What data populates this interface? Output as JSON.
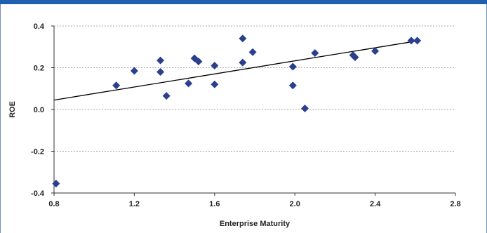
{
  "chart_data": {
    "type": "scatter",
    "title": "",
    "xlabel": "Enterprise Maturity",
    "ylabel": "ROE",
    "xlim": [
      0.8,
      2.8
    ],
    "ylim": [
      -0.4,
      0.4
    ],
    "x_ticks": [
      "0.8",
      "1.2",
      "1.6",
      "2.0",
      "2.4",
      "2.8"
    ],
    "y_ticks": [
      "0.4",
      "0.2",
      "0.0",
      "-0.2",
      "-0.4"
    ],
    "grid": "horizontal-dashed",
    "marker_color": "#2b3f8f",
    "trendline": {
      "x": [
        0.8,
        2.62
      ],
      "y": [
        0.045,
        0.33
      ],
      "color": "#000000"
    },
    "points": [
      {
        "x": 0.81,
        "y": -0.355
      },
      {
        "x": 1.11,
        "y": 0.115
      },
      {
        "x": 1.2,
        "y": 0.185
      },
      {
        "x": 1.33,
        "y": 0.235
      },
      {
        "x": 1.33,
        "y": 0.18
      },
      {
        "x": 1.36,
        "y": 0.065
      },
      {
        "x": 1.47,
        "y": 0.125
      },
      {
        "x": 1.5,
        "y": 0.245
      },
      {
        "x": 1.52,
        "y": 0.23
      },
      {
        "x": 1.6,
        "y": 0.21
      },
      {
        "x": 1.6,
        "y": 0.12
      },
      {
        "x": 1.74,
        "y": 0.34
      },
      {
        "x": 1.74,
        "y": 0.225
      },
      {
        "x": 1.79,
        "y": 0.275
      },
      {
        "x": 1.99,
        "y": 0.205
      },
      {
        "x": 1.99,
        "y": 0.115
      },
      {
        "x": 2.05,
        "y": 0.005
      },
      {
        "x": 2.1,
        "y": 0.27
      },
      {
        "x": 2.29,
        "y": 0.26
      },
      {
        "x": 2.3,
        "y": 0.25
      },
      {
        "x": 2.4,
        "y": 0.28
      },
      {
        "x": 2.58,
        "y": 0.33
      },
      {
        "x": 2.61,
        "y": 0.33
      }
    ]
  }
}
